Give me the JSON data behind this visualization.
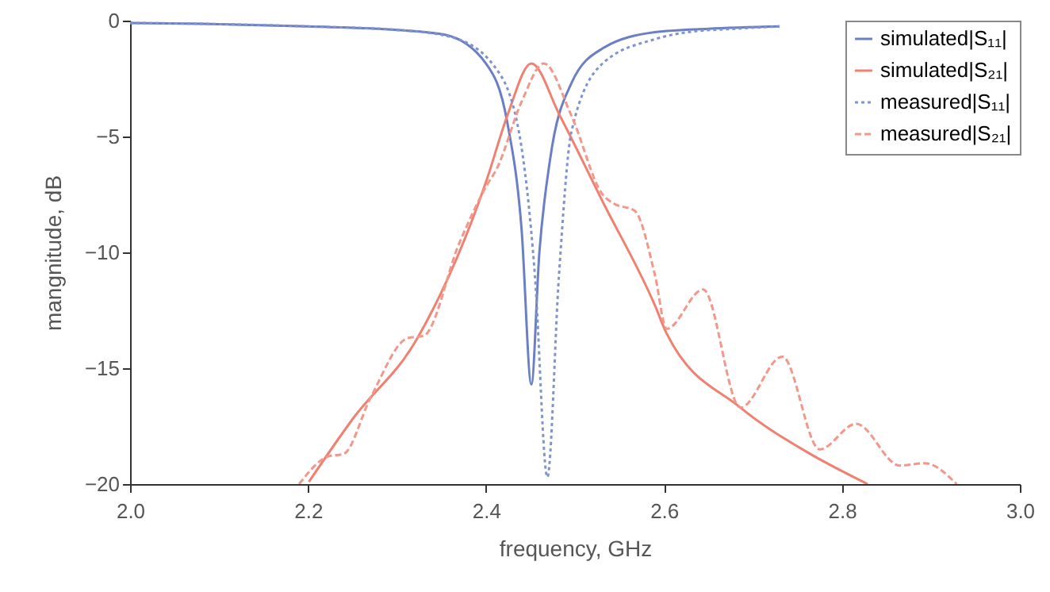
{
  "chart_data": {
    "type": "line",
    "xlabel": "frequency, GHz",
    "ylabel": "mangnitude, dB",
    "xlim": [
      2.0,
      3.0
    ],
    "ylim": [
      -20,
      0
    ],
    "xticks": [
      {
        "value": 2.0,
        "label": "2.0"
      },
      {
        "value": 2.2,
        "label": "2.2"
      },
      {
        "value": 2.4,
        "label": "2.4"
      },
      {
        "value": 2.6,
        "label": "2.6"
      },
      {
        "value": 2.8,
        "label": "2.8"
      },
      {
        "value": 3.0,
        "label": "3.0"
      }
    ],
    "yticks": [
      {
        "value": 0,
        "label": "0"
      },
      {
        "value": -5,
        "label": "−5"
      },
      {
        "value": -10,
        "label": "−10"
      },
      {
        "value": -15,
        "label": "−15"
      },
      {
        "value": -20,
        "label": "−20"
      }
    ],
    "grid": false,
    "legend": "top right",
    "series": [
      {
        "name": "simulated|S₁₁|",
        "color": "#6a7fc4",
        "line_style": "solid",
        "x": [
          2.0,
          2.1,
          2.2,
          2.3,
          2.353,
          2.4,
          2.424,
          2.44,
          2.451,
          2.46,
          2.472,
          2.496,
          2.531,
          2.59,
          2.65,
          2.73
        ],
        "values": [
          -0.1,
          -0.15,
          -0.25,
          -0.4,
          -0.6,
          -1.85,
          -4.4,
          -9,
          -15.7,
          -10,
          -6,
          -2.7,
          -1.2,
          -0.5,
          -0.35,
          -0.25
        ]
      },
      {
        "name": "simulated|S₂₁|",
        "color": "#f08070",
        "line_style": "solid",
        "x": [
          2.201,
          2.25,
          2.323,
          2.401,
          2.424,
          2.451,
          2.483,
          2.531,
          2.59,
          2.603,
          2.686,
          2.76,
          2.829
        ],
        "values": [
          -19.9,
          -17.2,
          -13.7,
          -6.85,
          -4.1,
          -1.85,
          -4.1,
          -7.8,
          -12.3,
          -13.5,
          -16.7,
          -18.6,
          -20
        ]
      },
      {
        "name": "measured|S₁₁|",
        "color": "#7f93d0",
        "line_style": "dotted",
        "x": [
          2.0,
          2.1,
          2.2,
          2.3,
          2.36,
          2.41,
          2.437,
          2.455,
          2.469,
          2.482,
          2.496,
          2.531,
          2.59,
          2.626,
          2.68,
          2.73
        ],
        "values": [
          -0.1,
          -0.15,
          -0.25,
          -0.4,
          -0.7,
          -2.0,
          -4.8,
          -11,
          -19.7,
          -11,
          -4.8,
          -1.85,
          -0.8,
          -0.5,
          -0.35,
          -0.25
        ]
      },
      {
        "name": "measured|S₂₁|",
        "color": "#f4968a",
        "line_style": "dashed",
        "x": [
          2.19,
          2.223,
          2.24,
          2.27,
          2.312,
          2.33,
          2.37,
          2.401,
          2.412,
          2.44,
          2.465,
          2.496,
          2.531,
          2.544,
          2.567,
          2.59,
          2.603,
          2.644,
          2.686,
          2.733,
          2.775,
          2.816,
          2.865,
          2.893,
          2.929
        ],
        "values": [
          -20,
          -18.8,
          -18.7,
          -16.3,
          -13.7,
          -13.6,
          -9.6,
          -7.1,
          -6.4,
          -3.5,
          -1.85,
          -4.1,
          -7.5,
          -7.9,
          -8.2,
          -11,
          -13.3,
          -11.6,
          -16.7,
          -14.5,
          -18.5,
          -17.4,
          -19.2,
          -19.1,
          -20
        ]
      }
    ]
  }
}
